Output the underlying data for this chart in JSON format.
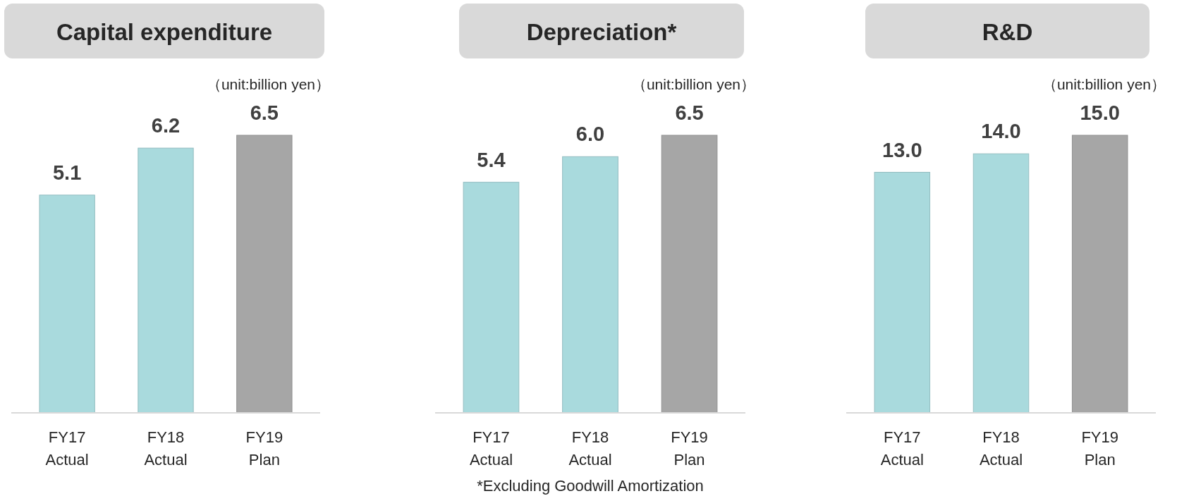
{
  "chart_data": [
    {
      "type": "bar",
      "title": "Capital expenditure",
      "categories": [
        "FY17\nActual",
        "FY18\nActual",
        "FY19\nPlan"
      ],
      "values": [
        5.1,
        6.2,
        6.5
      ],
      "colors": [
        "#a9dadd",
        "#a9dadd",
        "#a6a6a6"
      ],
      "value_labels": [
        "5.1",
        "6.2",
        "6.5"
      ],
      "annotations": [
        "（unit:billion yen）"
      ]
    },
    {
      "type": "bar",
      "title": "Depreciation*",
      "categories": [
        "FY17\nActual",
        "FY18\nActual",
        "FY19\nPlan"
      ],
      "values": [
        5.4,
        6.0,
        6.5
      ],
      "colors": [
        "#a9dadd",
        "#a9dadd",
        "#a6a6a6"
      ],
      "value_labels": [
        "5.4",
        "6.0",
        "6.5"
      ],
      "annotations": [
        "（unit:billion yen）",
        "*Excluding Goodwill Amortization"
      ]
    },
    {
      "type": "bar",
      "title": "R&D",
      "categories": [
        "FY17\nActual",
        "FY18\nActual",
        "FY19\nPlan"
      ],
      "values": [
        13.0,
        14.0,
        15.0
      ],
      "colors": [
        "#a9dadd",
        "#a9dadd",
        "#a6a6a6"
      ],
      "value_labels": [
        "13.0",
        "14.0",
        "15.0"
      ],
      "annotations": [
        "（unit:billion yen）"
      ]
    }
  ]
}
